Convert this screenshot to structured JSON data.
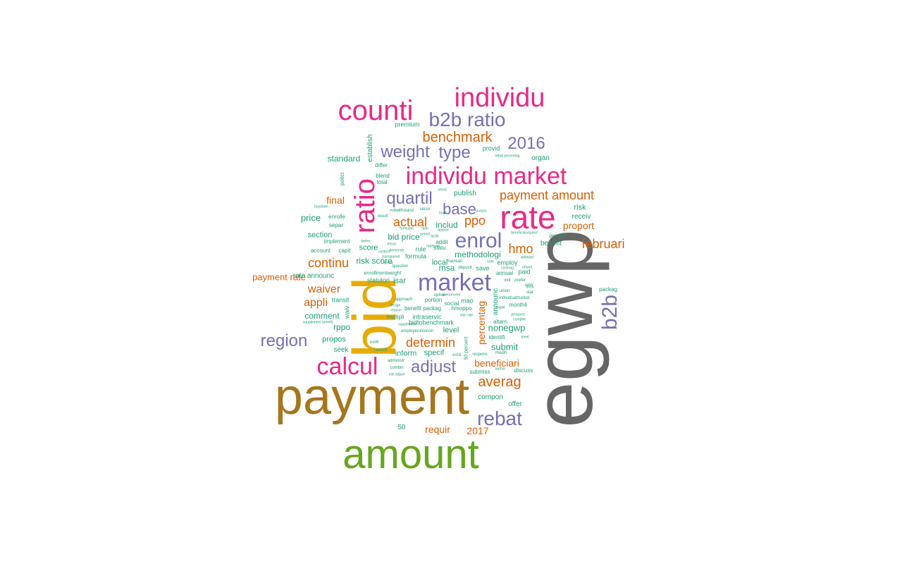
{
  "palette": {
    "gray": "#666666",
    "gold_brown": "#A6761D",
    "green": "#66A61E",
    "yellow": "#E6AB02",
    "magenta": "#E7298A",
    "purple": "#7570B3",
    "orange": "#D95F02",
    "teal": "#1B9E77"
  },
  "words": [
    {
      "text": "egwp",
      "color": "gray",
      "weight": 10,
      "rotated": true
    },
    {
      "text": "payment",
      "color": "gold_brown",
      "weight": 9
    },
    {
      "text": "amount",
      "color": "green",
      "weight": 8
    },
    {
      "text": "bid",
      "color": "yellow",
      "weight": 8,
      "rotated": true
    },
    {
      "text": "rate",
      "color": "magenta",
      "weight": 7
    },
    {
      "text": "counti",
      "color": "magenta",
      "weight": 6
    },
    {
      "text": "individu",
      "color": "magenta",
      "weight": 6
    },
    {
      "text": "ratio",
      "color": "magenta",
      "weight": 6,
      "rotated": true
    },
    {
      "text": "market",
      "color": "purple",
      "weight": 6
    },
    {
      "text": "individu market",
      "color": "magenta",
      "weight": 5
    },
    {
      "text": "calcul",
      "color": "magenta",
      "weight": 5
    },
    {
      "text": "enrol",
      "color": "purple",
      "weight": 5
    },
    {
      "text": "b2b ratio",
      "color": "purple",
      "weight": 5
    },
    {
      "text": "b2b",
      "color": "purple",
      "weight": 5,
      "rotated": true
    },
    {
      "text": "rebat",
      "color": "purple",
      "weight": 4
    },
    {
      "text": "adjust",
      "color": "purple",
      "weight": 4
    },
    {
      "text": "region",
      "color": "purple",
      "weight": 4
    },
    {
      "text": "2016",
      "color": "purple",
      "weight": 4
    },
    {
      "text": "quartil",
      "color": "purple",
      "weight": 4
    },
    {
      "text": "type",
      "color": "purple",
      "weight": 4
    },
    {
      "text": "weight",
      "color": "purple",
      "weight": 4
    },
    {
      "text": "base",
      "color": "purple",
      "weight": 4
    },
    {
      "text": "benchmark",
      "color": "orange",
      "weight": 4
    },
    {
      "text": "payment amount",
      "color": "orange",
      "weight": 3
    },
    {
      "text": "averag",
      "color": "orange",
      "weight": 3
    },
    {
      "text": "continu",
      "color": "orange",
      "weight": 3
    },
    {
      "text": "februari",
      "color": "orange",
      "weight": 3
    },
    {
      "text": "determin",
      "color": "orange",
      "weight": 3
    },
    {
      "text": "actual",
      "color": "orange",
      "weight": 3
    },
    {
      "text": "hmo",
      "color": "orange",
      "weight": 3
    },
    {
      "text": "ppo",
      "color": "orange",
      "weight": 3
    },
    {
      "text": "waiver",
      "color": "orange",
      "weight": 3
    },
    {
      "text": "appli",
      "color": "orange",
      "weight": 3
    },
    {
      "text": "percentag",
      "color": "orange",
      "weight": 3,
      "rotated": true
    },
    {
      "text": "beneficiari",
      "color": "orange",
      "weight": 2
    },
    {
      "text": "requir",
      "color": "orange",
      "weight": 2
    },
    {
      "text": "2017",
      "color": "orange",
      "weight": 2
    },
    {
      "text": "final",
      "color": "orange",
      "weight": 2
    },
    {
      "text": "proport",
      "color": "orange",
      "weight": 2
    },
    {
      "text": "payment rate",
      "color": "orange",
      "weight": 2
    },
    {
      "text": "submit",
      "color": "teal",
      "weight": 2
    },
    {
      "text": "nonegwp",
      "color": "teal",
      "weight": 2
    },
    {
      "text": "methodologi",
      "color": "teal",
      "weight": 2
    },
    {
      "text": "includ",
      "color": "teal",
      "weight": 2
    },
    {
      "text": "bid price",
      "color": "teal",
      "weight": 2
    },
    {
      "text": "risk score",
      "color": "teal",
      "weight": 2
    },
    {
      "text": "price",
      "color": "teal",
      "weight": 2
    },
    {
      "text": "standard",
      "color": "teal",
      "weight": 2
    },
    {
      "text": "publish",
      "color": "teal",
      "weight": 1
    },
    {
      "text": "risk",
      "color": "teal",
      "weight": 2
    },
    {
      "text": "receiv",
      "color": "teal",
      "weight": 1
    },
    {
      "text": "benefit",
      "color": "teal",
      "weight": 1
    },
    {
      "text": "organ",
      "color": "teal",
      "weight": 1
    },
    {
      "text": "provid",
      "color": "teal",
      "weight": 1
    },
    {
      "text": "premium",
      "color": "teal",
      "weight": 1
    },
    {
      "text": "establish",
      "color": "teal",
      "weight": 1,
      "rotated": true
    },
    {
      "text": "differ",
      "color": "teal",
      "weight": 1
    },
    {
      "text": "blend",
      "color": "teal",
      "weight": 1
    },
    {
      "text": "total",
      "color": "teal",
      "weight": 1
    },
    {
      "text": "polici",
      "color": "teal",
      "weight": 1,
      "rotated": true
    },
    {
      "text": "enrolle",
      "color": "teal",
      "weight": 1
    },
    {
      "text": "separ",
      "color": "teal",
      "weight": 1
    },
    {
      "text": "section",
      "color": "teal",
      "weight": 2
    },
    {
      "text": "implement",
      "color": "teal",
      "weight": 1
    },
    {
      "text": "account",
      "color": "teal",
      "weight": 1
    },
    {
      "text": "capit",
      "color": "teal",
      "weight": 1
    },
    {
      "text": "rate announc",
      "color": "teal",
      "weight": 1
    },
    {
      "text": "statutori",
      "color": "teal",
      "weight": 1
    },
    {
      "text": "isar",
      "color": "teal",
      "weight": 2
    },
    {
      "text": "enrollmentweight",
      "color": "teal",
      "weight": 1
    },
    {
      "text": "score",
      "color": "teal",
      "weight": 2
    },
    {
      "text": "rule",
      "color": "teal",
      "weight": 1
    },
    {
      "text": "formula",
      "color": "teal",
      "weight": 1
    },
    {
      "text": "local",
      "color": "teal",
      "weight": 2
    },
    {
      "text": "msa",
      "color": "teal",
      "weight": 2
    },
    {
      "text": "save",
      "color": "teal",
      "weight": 1
    },
    {
      "text": "paid",
      "color": "teal",
      "weight": 1
    },
    {
      "text": "annual",
      "color": "teal",
      "weight": 1
    },
    {
      "text": "employ",
      "color": "teal",
      "weight": 1
    },
    {
      "text": "transit",
      "color": "teal",
      "weight": 1
    },
    {
      "text": "waiv",
      "color": "teal",
      "weight": 1,
      "rotated": true
    },
    {
      "text": "comment",
      "color": "teal",
      "weight": 2
    },
    {
      "text": "rppo",
      "color": "teal",
      "weight": 2
    },
    {
      "text": "propos",
      "color": "teal",
      "weight": 2
    },
    {
      "text": "seek",
      "color": "teal",
      "weight": 1
    },
    {
      "text": "inform",
      "color": "teal",
      "weight": 2
    },
    {
      "text": "specif",
      "color": "teal",
      "weight": 2
    },
    {
      "text": "level",
      "color": "teal",
      "weight": 2
    },
    {
      "text": "intraservic",
      "color": "teal",
      "weight": 1
    },
    {
      "text": "multipli",
      "color": "teal",
      "weight": 1
    },
    {
      "text": "bidtobenchmark",
      "color": "teal",
      "weight": 1
    },
    {
      "text": "benefit packag",
      "color": "teal",
      "weight": 1
    },
    {
      "text": "hmoppo",
      "color": "teal",
      "weight": 1
    },
    {
      "text": "portion",
      "color": "teal",
      "weight": 1
    },
    {
      "text": "social",
      "color": "teal",
      "weight": 1
    },
    {
      "text": "mao",
      "color": "teal",
      "weight": 1
    },
    {
      "text": "monthli",
      "color": "teal",
      "weight": 1
    },
    {
      "text": "altern",
      "color": "teal",
      "weight": 1
    },
    {
      "text": "identifi",
      "color": "teal",
      "weight": 1
    },
    {
      "text": "compon",
      "color": "teal",
      "weight": 1
    },
    {
      "text": "offer",
      "color": "teal",
      "weight": 1
    },
    {
      "text": "50",
      "color": "teal",
      "weight": 1
    },
    {
      "text": "submiss",
      "color": "teal",
      "weight": 1
    },
    {
      "text": "discuss",
      "color": "teal",
      "weight": 1
    },
    {
      "text": "respons",
      "color": "teal",
      "weight": 1
    },
    {
      "text": "modifi",
      "color": "teal",
      "weight": 1
    },
    {
      "text": "50 percent",
      "color": "teal",
      "weight": 1,
      "rotated": true
    },
    {
      "text": "announc",
      "color": "teal",
      "weight": 1,
      "rotated": true
    },
    {
      "text": "packag",
      "color": "teal",
      "weight": 1
    },
    {
      "text": "employerunionon",
      "color": "teal",
      "weight": 1
    },
    {
      "text": "current",
      "color": "teal",
      "weight": 1
    },
    {
      "text": "administr",
      "color": "teal",
      "weight": 1
    },
    {
      "text": "combin",
      "color": "teal",
      "weight": 1
    },
    {
      "text": "risk adjust",
      "color": "teal",
      "weight": 1
    },
    {
      "text": "esrd",
      "color": "teal",
      "weight": 1
    },
    {
      "text": "question",
      "color": "teal",
      "weight": 1
    },
    {
      "text": "deposit",
      "color": "teal",
      "weight": 1
    },
    {
      "text": "maintain",
      "color": "teal",
      "weight": 1
    },
    {
      "text": "addit",
      "color": "teal",
      "weight": 1
    },
    {
      "text": "statu",
      "color": "teal",
      "weight": 1
    },
    {
      "text": "notwithstand",
      "color": "teal",
      "weight": 1
    },
    {
      "text": "secur",
      "color": "teal",
      "weight": 1
    },
    {
      "text": "result",
      "color": "teal",
      "weight": 1
    },
    {
      "text": "formulari",
      "color": "teal",
      "weight": 1
    },
    {
      "text": "faith",
      "color": "teal",
      "weight": 1
    },
    {
      "text": "approach",
      "color": "teal",
      "weight": 1
    },
    {
      "text": "design",
      "color": "teal",
      "weight": 1
    },
    {
      "text": "reason",
      "color": "teal",
      "weight": 1
    },
    {
      "text": "supplement",
      "color": "teal",
      "weight": 1
    },
    {
      "text": "supplement benefit",
      "color": "teal",
      "weight": 1
    },
    {
      "text": "qualifi",
      "color": "teal",
      "weight": 1
    },
    {
      "text": "individualmarket",
      "color": "teal",
      "weight": 1
    },
    {
      "text": "star",
      "color": "teal",
      "weight": 1
    },
    {
      "text": "refer",
      "color": "teal",
      "weight": 1
    },
    {
      "text": "prefer",
      "color": "teal",
      "weight": 1
    },
    {
      "text": "initi",
      "color": "teal",
      "weight": 1
    },
    {
      "text": "union",
      "color": "teal",
      "weight": 1
    },
    {
      "text": "percent",
      "color": "teal",
      "weight": 1
    },
    {
      "text": "coverag",
      "color": "teal",
      "weight": 1
    },
    {
      "text": "refund",
      "color": "teal",
      "weight": 1
    },
    {
      "text": "withhold",
      "color": "teal",
      "weight": 1
    },
    {
      "text": "note",
      "color": "teal",
      "weight": 1
    },
    {
      "text": "beneficiaryspecif",
      "color": "teal",
      "weight": 1
    },
    {
      "text": "rebat percentag",
      "color": "teal",
      "weight": 1
    },
    {
      "text": "servic",
      "color": "teal",
      "weight": 1
    },
    {
      "text": "purpos",
      "color": "teal",
      "weight": 1
    },
    {
      "text": "basic",
      "color": "teal",
      "weight": 1
    },
    {
      "text": "buydown",
      "color": "teal",
      "weight": 1
    },
    {
      "text": "believ",
      "color": "teal",
      "weight": 1
    },
    {
      "text": "ensur",
      "color": "teal",
      "weight": 1
    },
    {
      "text": "complet",
      "color": "teal",
      "weight": 1
    },
    {
      "text": "meet",
      "color": "teal",
      "weight": 1
    },
    {
      "text": "prospect",
      "color": "teal",
      "weight": 1
    },
    {
      "text": "author",
      "color": "teal",
      "weight": 1
    },
    {
      "text": "star rate",
      "color": "teal",
      "weight": 1
    },
    {
      "text": "bonu",
      "color": "teal",
      "weight": 1
    },
    {
      "text": "option",
      "color": "teal",
      "weight": 1
    },
    {
      "text": "approv",
      "color": "teal",
      "weight": 1
    },
    {
      "text": "context",
      "color": "teal",
      "weight": 1
    },
    {
      "text": "facilit",
      "color": "teal",
      "weight": 1
    },
    {
      "text": "announcedi",
      "color": "teal",
      "weight": 1
    },
    {
      "text": "transparent",
      "color": "teal",
      "weight": 1
    },
    {
      "text": "demonstr",
      "color": "teal",
      "weight": 1
    },
    {
      "text": "permit",
      "color": "teal",
      "weight": 1
    },
    {
      "text": "credit",
      "color": "teal",
      "weight": 1
    },
    {
      "text": "ratebook",
      "color": "teal",
      "weight": 1
    },
    {
      "text": "eligibl",
      "color": "teal",
      "weight": 1
    }
  ]
}
